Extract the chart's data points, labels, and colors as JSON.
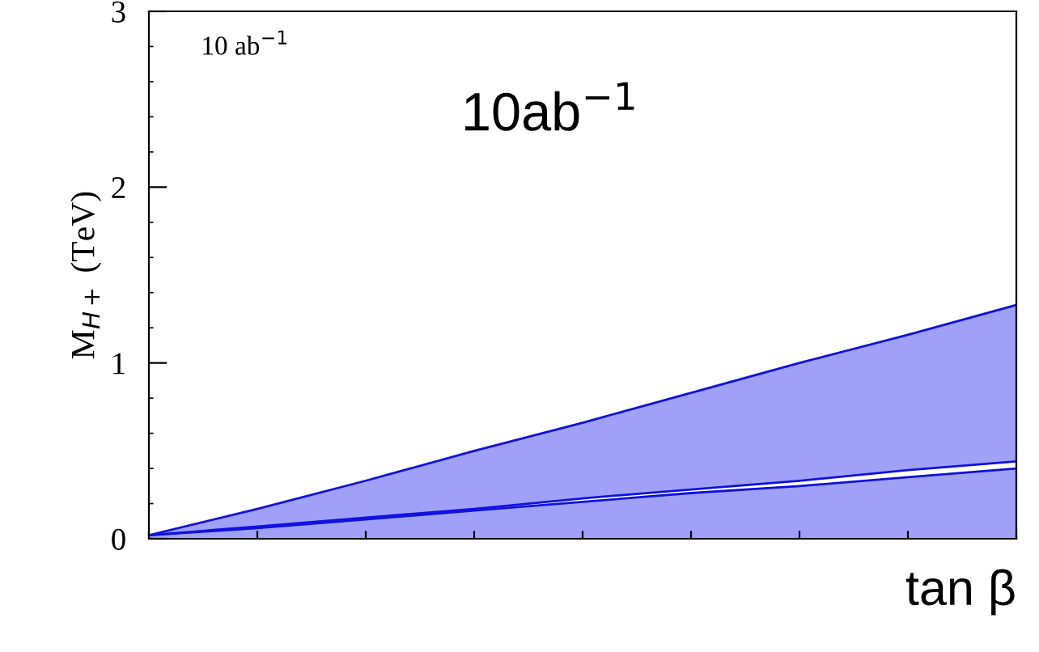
{
  "chart_data": {
    "type": "area",
    "stacked": true,
    "xlabel": "tan β",
    "ylabel": "M$_{H+}$ (TeV)",
    "categories": [
      null,
      null,
      null,
      null,
      null,
      null,
      null,
      null,
      null
    ],
    "series": [
      {
        "color": "#a0a0f8",
        "values": [
          0.02,
          0.06,
          0.11,
          0.16,
          0.21,
          0.26,
          0.3,
          0.35,
          0.4
        ]
      },
      {
        "color": "#ffffff",
        "values": [
          0,
          0.01,
          0.01,
          0.01,
          0.02,
          0.02,
          0.03,
          0.04,
          0.04
        ]
      },
      {
        "color": "#a0a0f8",
        "values": [
          0,
          0.1,
          0.21,
          0.33,
          0.43,
          0.55,
          0.67,
          0.77,
          0.89
        ]
      }
    ],
    "ylim": [
      0,
      3
    ],
    "yticks": [
      0,
      1,
      2,
      3
    ],
    "annotations": [
      "10 ab$^{−1}$",
      "10ab$^{−1}$"
    ]
  }
}
